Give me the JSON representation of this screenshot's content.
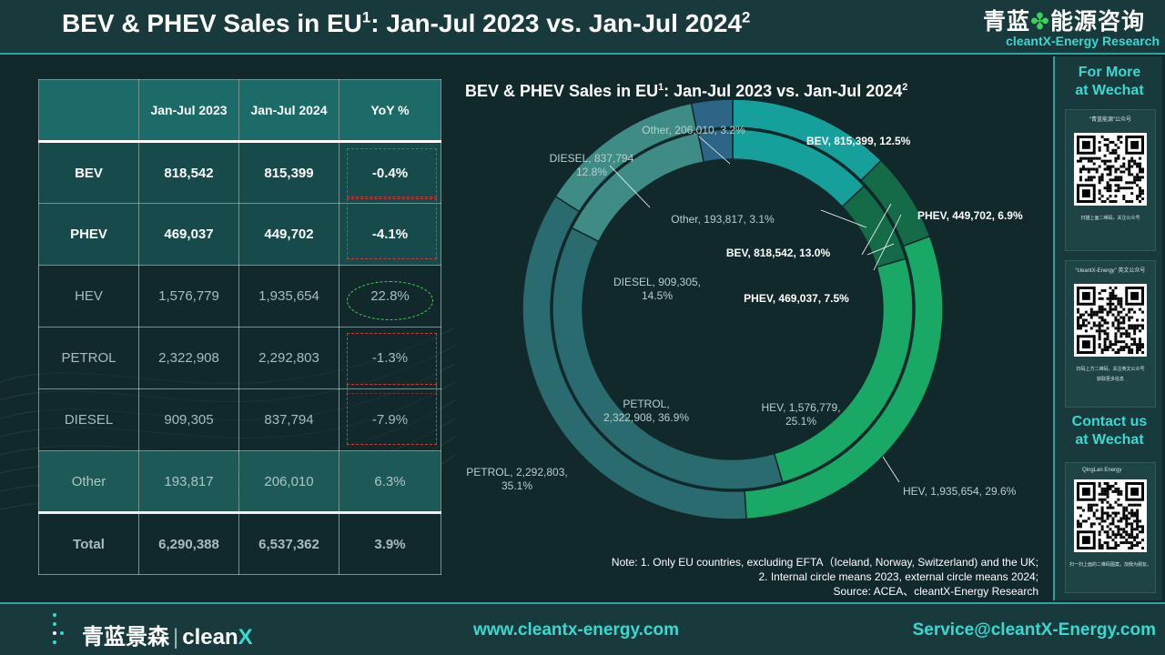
{
  "header": {
    "title": "BEV & PHEV Sales in EU",
    "title_sup": "1",
    "title_rest": ":  Jan-Jul 2023 vs. Jan-Jul 2024",
    "title_sup2": "2",
    "brand_cn_left": "青蓝",
    "brand_cn_icon": "✤",
    "brand_cn_right": "能源咨询",
    "brand_en": "cleantX-Energy Research"
  },
  "table": {
    "headers": [
      "",
      "Jan-Jul 2023",
      "Jan-Jul 2024",
      "YoY %"
    ],
    "rows": [
      {
        "name": "BEV",
        "v2023": "818,542",
        "v2024": "815,399",
        "yoy": "-0.4%"
      },
      {
        "name": "PHEV",
        "v2023": "469,037",
        "v2024": "449,702",
        "yoy": "-4.1%"
      },
      {
        "name": "HEV",
        "v2023": "1,576,779",
        "v2024": "1,935,654",
        "yoy": "22.8%"
      },
      {
        "name": "PETROL",
        "v2023": "2,322,908",
        "v2024": "2,292,803",
        "yoy": "-1.3%"
      },
      {
        "name": "DIESEL",
        "v2023": "909,305",
        "v2024": "837,794",
        "yoy": "-7.9%"
      },
      {
        "name": "Other",
        "v2023": "193,817",
        "v2024": "206,010",
        "yoy": "6.3%"
      },
      {
        "name": "Total",
        "v2023": "6,290,388",
        "v2024": "6,537,362",
        "yoy": "3.9%"
      }
    ]
  },
  "chart_data": {
    "type": "pie",
    "title": "BEV & PHEV Sales in EU",
    "title_sup": "1",
    "title_rest": ":  Jan-Jul 2023 vs. Jan-Jul 2024",
    "title_sup2": "2",
    "categories": [
      "BEV",
      "PHEV",
      "HEV",
      "PETROL",
      "DIESEL",
      "Other"
    ],
    "series": [
      {
        "values": [
          818542,
          469037,
          1576779,
          2322908,
          909305,
          193817
        ]
      },
      {
        "values": [
          815399,
          449702,
          1935654,
          2292803,
          837794,
          206010
        ]
      }
    ],
    "colors": [
      "#16a09c",
      "#146b47",
      "#1aa866",
      "#2a6b70",
      "#3f8c86",
      "#2c6585"
    ],
    "labels_inner": [
      {
        "l1": "BEV, 818,542, 13.0%",
        "l2": ""
      },
      {
        "l1": "PHEV, 469,037, 7.5%",
        "l2": ""
      },
      {
        "l1": "HEV,        1,576,779,",
        "l2": "25.1%"
      },
      {
        "l1": "PETROL,",
        "l2": "2,322,908, 36.9%"
      },
      {
        "l1": "DIESEL, 909,305,",
        "l2": "14.5%"
      },
      {
        "l1": "Other, 193,817, 3.1%",
        "l2": ""
      }
    ],
    "labels_outer": [
      {
        "l1": "BEV, 815,399, 12.5%",
        "l2": ""
      },
      {
        "l1": "PHEV, 449,702, 6.9%",
        "l2": ""
      },
      {
        "l1": "HEV, 1,935,654, 29.6%",
        "l2": ""
      },
      {
        "l1": "PETROL, 2,292,803,",
        "l2": "35.1%"
      },
      {
        "l1": "DIESEL, 837,794",
        "l2": "12.8%"
      },
      {
        "l1": "Other, 206,010, 3.2%",
        "l2": ""
      }
    ]
  },
  "notes": [
    "Note: 1. Only EU countries, excluding EFTA（Iceland, Norway, Switzerland) and the UK;",
    "2. Internal circle means 2023, external circle means 2024;",
    "Source: ACEA、cleantX-Energy Research"
  ],
  "sidebar": {
    "more_title_1": "For More",
    "more_title_2": "at Wechat",
    "qr1_caption": "“青蓝能源”公众号",
    "qr1_sub": "扫描上面二维码，关注公众号",
    "qr2_caption": "“cleantX-Energy” 英文公众号",
    "qr2_sub": "扫码上方二维码，关注英文公众号",
    "qr2_sub2": "获取更多信息",
    "contact_title_1": "Contact us",
    "contact_title_2": "at Wechat",
    "qr3_caption": "QingLan Energy",
    "qr3_sub": "扫一扫上面的二维码图案，加我为朋友。"
  },
  "footer": {
    "logo_cn": "青蓝景森",
    "logo_sep": "|",
    "logo_en": "clean",
    "logo_x": "X",
    "website": "www.cleantx-energy.com",
    "email": "Service@cleantX-Energy.com"
  }
}
